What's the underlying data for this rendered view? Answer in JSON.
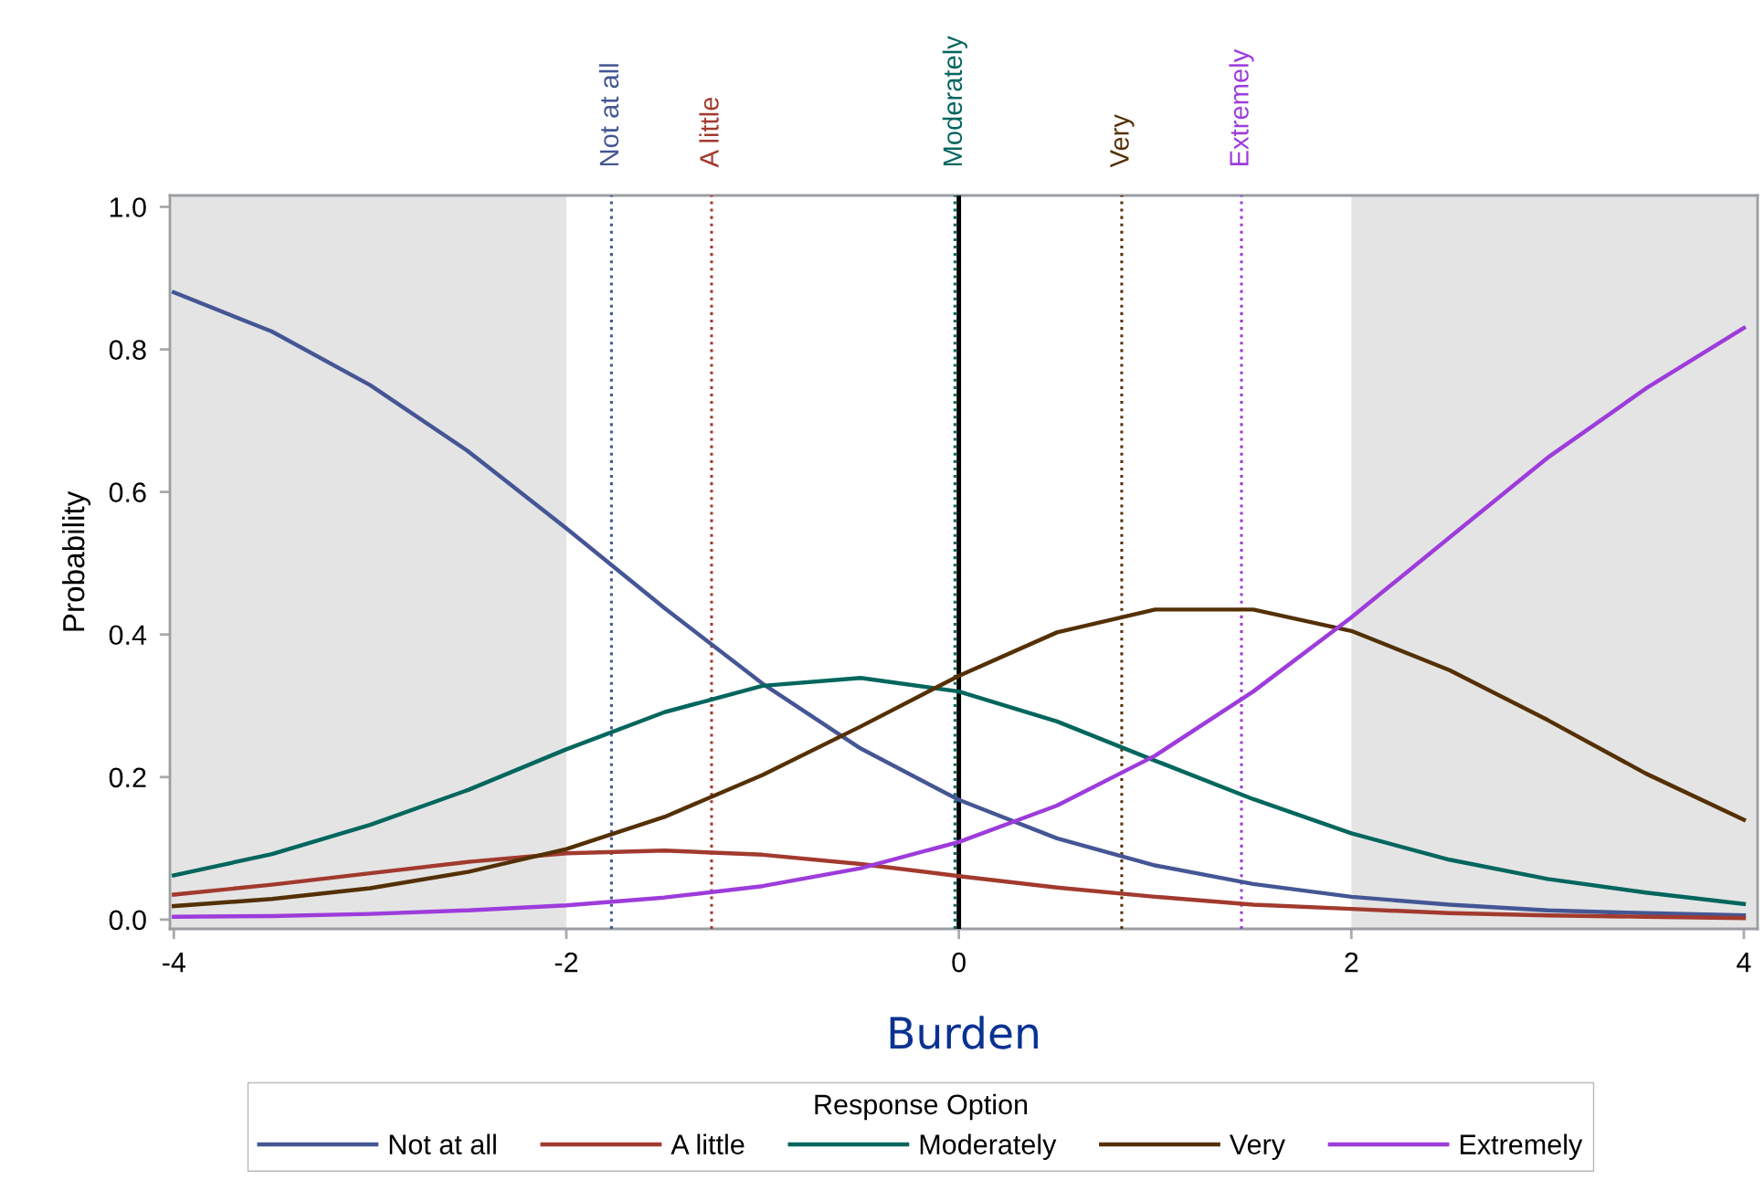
{
  "chart_data": {
    "type": "line",
    "xlabel": "Burden",
    "ylabel": "Probability",
    "legend_title": "Response Option",
    "legend": "bottom",
    "grid": false,
    "x": [
      -4,
      -3.5,
      -3,
      -2.5,
      -2,
      -1.5,
      -1,
      -0.5,
      0,
      0.5,
      1,
      1.5,
      2,
      2.5,
      3,
      3.5,
      4
    ],
    "series": [
      {
        "name": "Not at all",
        "color": "#445694",
        "values": [
          0.88,
          0.825,
          0.75,
          0.657,
          0.549,
          0.437,
          0.331,
          0.24,
          0.168,
          0.114,
          0.076,
          0.05,
          0.032,
          0.021,
          0.013,
          0.009,
          0.006
        ]
      },
      {
        "name": "A little",
        "color": "#a23a2e",
        "values": [
          0.035,
          0.049,
          0.065,
          0.081,
          0.093,
          0.097,
          0.091,
          0.078,
          0.061,
          0.045,
          0.032,
          0.021,
          0.015,
          0.009,
          0.006,
          0.004,
          0.002
        ]
      },
      {
        "name": "Moderately",
        "color": "#01665e",
        "values": [
          0.062,
          0.092,
          0.133,
          0.182,
          0.239,
          0.291,
          0.328,
          0.339,
          0.32,
          0.278,
          0.223,
          0.169,
          0.121,
          0.084,
          0.057,
          0.038,
          0.022
        ]
      },
      {
        "name": "Very",
        "color": "#543005",
        "values": [
          0.019,
          0.029,
          0.044,
          0.067,
          0.099,
          0.144,
          0.203,
          0.271,
          0.342,
          0.403,
          0.435,
          0.435,
          0.405,
          0.35,
          0.28,
          0.205,
          0.14
        ]
      },
      {
        "name": "Extremely",
        "color": "#9d3cdb",
        "values": [
          0.004,
          0.005,
          0.008,
          0.013,
          0.02,
          0.031,
          0.047,
          0.072,
          0.109,
          0.16,
          0.23,
          0.32,
          0.424,
          0.536,
          0.648,
          0.745,
          0.83
        ]
      }
    ],
    "xlim": [
      -4.02,
      4.07
    ],
    "ylim": [
      -0.013,
      1.016
    ],
    "xticks": [
      -4,
      -2,
      0,
      2,
      4
    ],
    "yticks": [
      {
        "value": 0,
        "label": "0.0"
      },
      0.2,
      0.4,
      0.6,
      0.8,
      {
        "value": 1,
        "label": "1.0"
      }
    ],
    "bands": [
      {
        "axis": "x",
        "from": -4.02,
        "to": -2,
        "label": null,
        "color": "#e4e4e4"
      },
      {
        "axis": "x",
        "from": 2,
        "to": 4.07,
        "label": null,
        "color": "#e4e4e4"
      }
    ],
    "ref_lines": [
      {
        "axis": "x",
        "value": -1.77,
        "label": "Not at all",
        "color": "#445694",
        "line_style": "dotted"
      },
      {
        "axis": "x",
        "value": -1.26,
        "label": "A little",
        "color": "#a23a2e",
        "line_style": "dotted"
      },
      {
        "axis": "x",
        "value": -0.02,
        "label": "Moderately",
        "color": "#01665e",
        "line_style": "dotted"
      },
      {
        "axis": "x",
        "value": 0.83,
        "label": "Very",
        "color": "#543005",
        "line_style": "dotted"
      },
      {
        "axis": "x",
        "value": 1.44,
        "label": "Extremely",
        "color": "#9d3cdb",
        "line_style": "dotted"
      },
      {
        "axis": "x",
        "value": 0,
        "label": null,
        "color": "#000000",
        "line_style": "solid"
      }
    ]
  }
}
